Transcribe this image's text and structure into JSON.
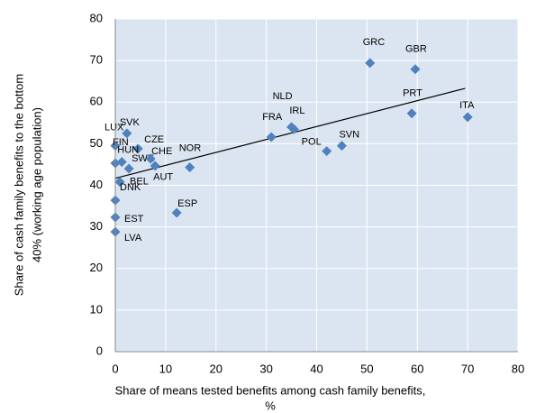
{
  "chart_data": {
    "type": "scatter",
    "x_label": [
      "Share of means tested benefits among cash family benefits,",
      "%"
    ],
    "y_label": [
      "Share of cash family benefits to the bottom",
      "40% (working age population)"
    ],
    "labels": [
      "LUX",
      "SVK",
      "CZE",
      "FIN",
      "HUN",
      "SWE",
      "CHE",
      "AUT",
      "NOR",
      "BEL",
      "DNK",
      "EST",
      "LVA",
      "ESP",
      "FRA",
      "NLD",
      "IRL",
      "POL",
      "SVN",
      "GRC",
      "GBR",
      "PRT",
      "ITA"
    ],
    "x": [
      0,
      2.3,
      4.5,
      0,
      1.3,
      2.7,
      7,
      7.9,
      14.8,
      0.9,
      0,
      0,
      0,
      12.2,
      31,
      35,
      35.5,
      42,
      45,
      50.6,
      59.6,
      58.9,
      70
    ],
    "y": [
      49.5,
      52.5,
      48.8,
      45.3,
      45.6,
      44,
      46.4,
      44.7,
      44.3,
      40.8,
      36.4,
      32.3,
      28.8,
      33.4,
      51.6,
      54,
      53.5,
      48.2,
      49.5,
      69.4,
      67.9,
      57.3,
      56.4
    ],
    "color": "#4f81bd",
    "trendline": {
      "x": [
        0,
        69.5
      ],
      "y": [
        41.7,
        63.3
      ],
      "color": "#000000"
    },
    "xlim": [
      0,
      80
    ],
    "xticks": [
      0,
      10,
      20,
      30,
      40,
      50,
      60,
      70,
      80
    ],
    "ylim": [
      0,
      80
    ],
    "yticks": [
      0,
      10,
      20,
      30,
      40,
      50,
      60,
      70,
      80
    ],
    "grid": true
  }
}
